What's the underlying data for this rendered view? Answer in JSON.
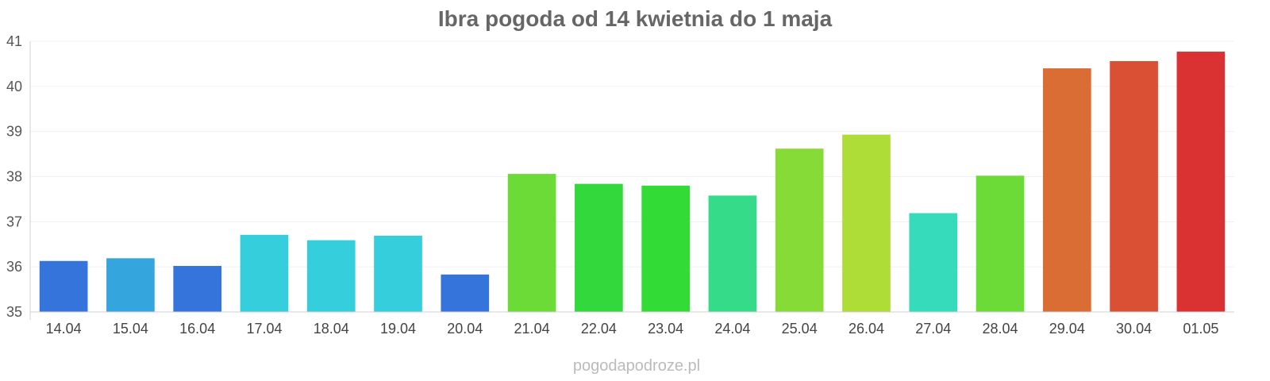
{
  "chart_data": {
    "type": "bar",
    "title": "Ibra pogoda od 14 kwietnia do 1 maja",
    "xlabel": "",
    "ylabel": "",
    "categories": [
      "14.04",
      "15.04",
      "16.04",
      "17.04",
      "18.04",
      "19.04",
      "20.04",
      "21.04",
      "22.04",
      "23.04",
      "24.04",
      "25.04",
      "26.04",
      "27.04",
      "28.04",
      "29.04",
      "30.04",
      "01.05"
    ],
    "values": [
      36.13,
      36.19,
      36.02,
      36.71,
      36.59,
      36.69,
      35.83,
      38.06,
      37.84,
      37.8,
      37.58,
      38.62,
      38.93,
      37.19,
      38.02,
      40.4,
      40.56,
      40.77
    ],
    "colors": [
      "#3575db",
      "#34a6dd",
      "#3575db",
      "#35cedc",
      "#35cedc",
      "#35cedc",
      "#3575db",
      "#6cdb38",
      "#33d83d",
      "#33db37",
      "#36db8a",
      "#87db36",
      "#addd36",
      "#35dbbb",
      "#6cdb38",
      "#d96d33",
      "#da5034",
      "#da3232"
    ],
    "ylim": [
      35,
      41
    ],
    "yticks": [
      35,
      36,
      37,
      38,
      39,
      40,
      41
    ],
    "grid": true,
    "legend": "none"
  },
  "watermark": "pogodapodroze.pl"
}
